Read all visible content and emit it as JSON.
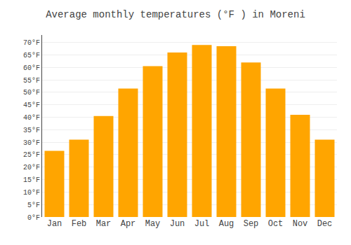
{
  "chart_data": {
    "type": "bar",
    "title": "Average monthly temperatures (°F ) in Moreni",
    "categories": [
      "Jan",
      "Feb",
      "Mar",
      "Apr",
      "May",
      "Jun",
      "Jul",
      "Aug",
      "Sep",
      "Oct",
      "Nov",
      "Dec"
    ],
    "values": [
      26.5,
      31.0,
      40.5,
      51.5,
      60.5,
      66.0,
      69.0,
      68.5,
      62.0,
      51.5,
      41.0,
      31.0
    ],
    "color": "#FFA500",
    "ylim": [
      0,
      73
    ],
    "yticks": [
      {
        "value": 0,
        "label": "0°F"
      },
      {
        "value": 5,
        "label": "5°F"
      },
      {
        "value": 10,
        "label": "10°F"
      },
      {
        "value": 15,
        "label": "15°F"
      },
      {
        "value": 20,
        "label": "20°F"
      },
      {
        "value": 25,
        "label": "25°F"
      },
      {
        "value": 30,
        "label": "30°F"
      },
      {
        "value": 35,
        "label": "35°F"
      },
      {
        "value": 40,
        "label": "40°F"
      },
      {
        "value": 45,
        "label": "45°F"
      },
      {
        "value": 50,
        "label": "50°F"
      },
      {
        "value": 55,
        "label": "55°F"
      },
      {
        "value": 60,
        "label": "60°F"
      },
      {
        "value": 65,
        "label": "65°F"
      },
      {
        "value": 70,
        "label": "70°F"
      }
    ],
    "grid": true
  }
}
